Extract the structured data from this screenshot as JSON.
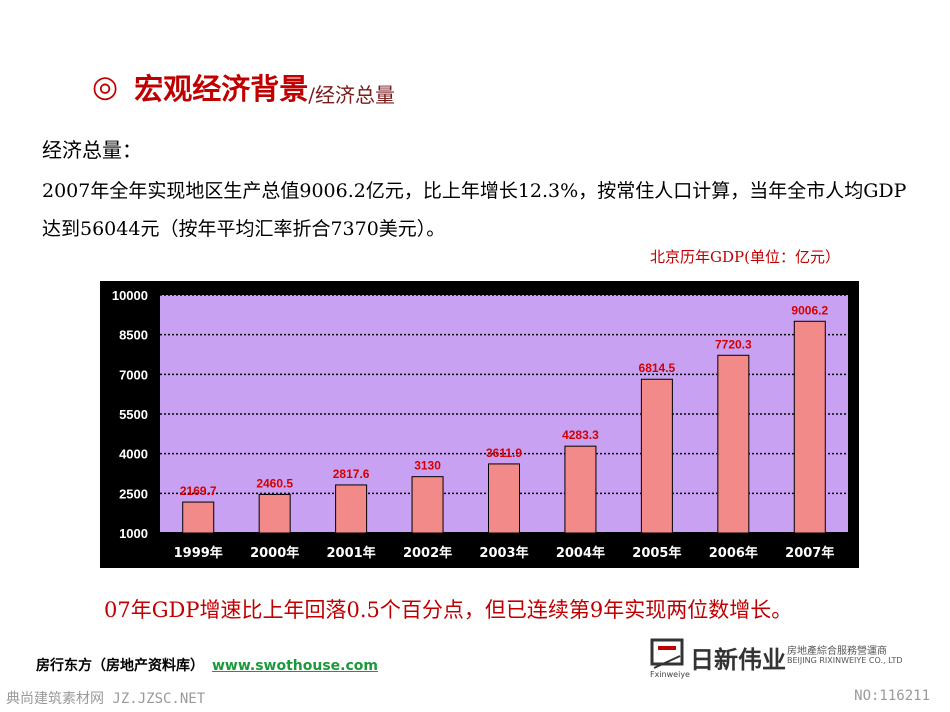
{
  "header": {
    "bullet": "◎",
    "title": "宏观经济背景",
    "subtitle": "/经济总量"
  },
  "section_label": "经济总量：",
  "paragraph": "2007年全年实现地区生产总值9006.2亿元，比上年增长12.3%，按常住人口计算，当年全市人均GDP达到56044元（按年平均汇率折合7370美元）。",
  "chart_caption": "北京历年GDP(单位：亿元）",
  "summary": "07年GDP增速比上年回落0.5个百分点，但已连续第9年实现两位数增长。",
  "footer": {
    "label": "房行东方（房地产资料库）",
    "link": "www.swothouse.com"
  },
  "logo": {
    "name": "日新伟业",
    "en_line1": "房地產綜合服務營運商",
    "en_line2": "BEIJING RIXINWEIYE CO., LTD",
    "sub": "Fxinweiye"
  },
  "watermark": {
    "left": "典尚建筑素材网 JZ.JZSC.NET",
    "right": "NO:116211"
  },
  "chart_data": {
    "type": "bar",
    "categories": [
      "1999年",
      "2000年",
      "2001年",
      "2002年",
      "2003年",
      "2004年",
      "2005年",
      "2006年",
      "2007年"
    ],
    "values": [
      2169.7,
      2460.5,
      2817.6,
      3130,
      3611.9,
      4283.3,
      6814.5,
      7720.3,
      9006.2
    ],
    "data_labels": [
      "2169.7",
      "2460.5",
      "2817.6",
      "3130",
      "3611.9",
      "4283.3",
      "6814.5",
      "7720.3",
      "9006.2"
    ],
    "yticks": [
      1000,
      2500,
      4000,
      5500,
      7000,
      8500,
      10000
    ],
    "ytick_labels": [
      "1000",
      "2500",
      "4000",
      "5500",
      "7000",
      "8500",
      "10000"
    ],
    "ylim": [
      1000,
      10000
    ],
    "title": "北京历年GDP(单位：亿元）",
    "xlabel": "",
    "ylabel": "",
    "grid": true,
    "colors": {
      "plot_bg": "#c9a1f2",
      "frame_bg": "#000000",
      "bar_fill": "#f28a8a",
      "bar_stroke": "#000000",
      "label": "#d40000",
      "tick": "#ffffff",
      "grid": "#000000"
    }
  }
}
